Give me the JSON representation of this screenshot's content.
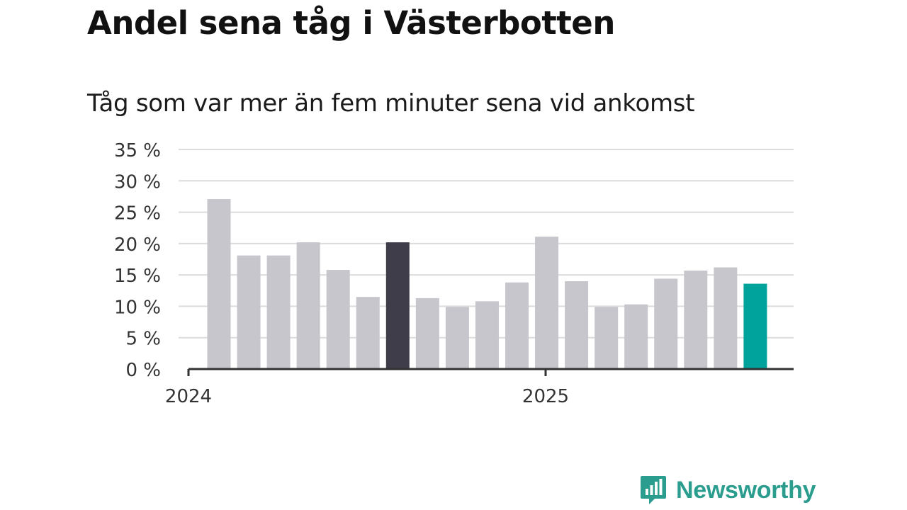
{
  "header": {
    "title": "Andel sena tåg i Västerbotten",
    "subtitle": "Tåg som var mer än fem minuter sena vid ankomst"
  },
  "brand": {
    "name": "Newsworthy",
    "icon": "newsworthy-logo-icon",
    "color": "#2a9d8f"
  },
  "colors": {
    "bar": "#c7c6cd",
    "highlight": "#3f3d4a",
    "latest": "#00a39b",
    "grid": "#dcdcdc",
    "axis": "#333333"
  },
  "chart_data": {
    "type": "bar",
    "title": "Andel sena tåg i Västerbotten",
    "subtitle": "Tåg som var mer än fem minuter sena vid ankomst",
    "xlabel": "",
    "ylabel": "",
    "x_tick_labels": [
      "2024",
      "2025"
    ],
    "y_ticks": [
      "0 %",
      "5 %",
      "10 %",
      "15 %",
      "20 %",
      "25 %",
      "30 %",
      "35 %"
    ],
    "ylim": [
      0,
      35
    ],
    "grid": true,
    "categories": [
      "2024-01",
      "2024-02",
      "2024-03",
      "2024-04",
      "2024-05",
      "2024-06",
      "2024-07",
      "2024-08",
      "2024-09",
      "2024-10",
      "2024-11",
      "2024-12",
      "2025-01",
      "2025-02",
      "2025-03",
      "2025-04",
      "2025-05",
      "2025-06",
      "2025-07"
    ],
    "values": [
      27.1,
      18.1,
      18.1,
      20.2,
      15.8,
      11.5,
      20.2,
      11.3,
      9.9,
      10.8,
      13.8,
      21.1,
      14.0,
      9.9,
      10.3,
      14.4,
      15.7,
      16.2,
      13.6
    ],
    "highlight_index": 6,
    "latest_index": 18
  }
}
